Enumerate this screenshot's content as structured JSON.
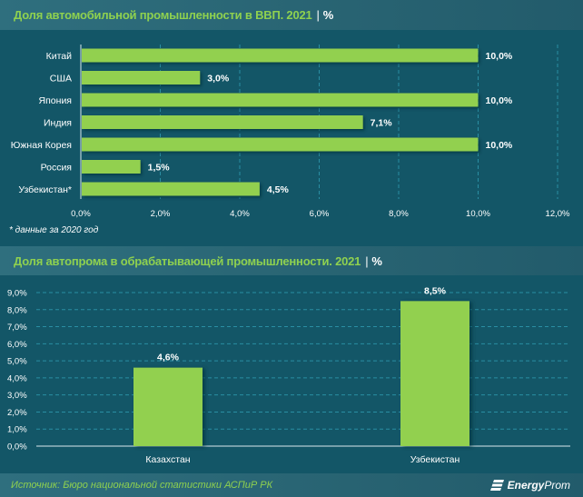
{
  "colors": {
    "background": "#135667",
    "bar": "#92d050",
    "title": "#8fd14f",
    "grid": "#2a8ea3",
    "axis": "#d9e8ec"
  },
  "header1": {
    "title": "Доля автомобильной промышленности в ВВП. 2021",
    "separator": "|",
    "unit": "%"
  },
  "header2": {
    "title": "Доля автопрома в обрабатывающей промышленности. 2021",
    "separator": "|",
    "unit": "%"
  },
  "note": "* данные за 2020 год",
  "footer": {
    "source": "Источник: Бюро национальной статистики АСПиР РК",
    "brand_bold": "Energy",
    "brand_light": "Prom"
  },
  "chart_data": [
    {
      "type": "bar",
      "orientation": "horizontal",
      "title": "Доля автомобильной промышленности в ВВП. 2021 | %",
      "categories": [
        "Китай",
        "США",
        "Япония",
        "Индия",
        "Южная Корея",
        "Россия",
        "Узбекистан*"
      ],
      "values": [
        10.0,
        3.0,
        10.0,
        7.1,
        10.0,
        1.5,
        4.5
      ],
      "data_labels": [
        "10,0%",
        "3,0%",
        "10,0%",
        "7,1%",
        "10,0%",
        "1,5%",
        "4,5%"
      ],
      "xlim": [
        0,
        12
      ],
      "xticks": [
        0,
        2,
        4,
        6,
        8,
        10,
        12
      ],
      "xtick_labels": [
        "0,0%",
        "2,0%",
        "4,0%",
        "6,0%",
        "8,0%",
        "10,0%",
        "12,0%"
      ],
      "xlabel": "",
      "ylabel": "",
      "grid": "vertical-dashed",
      "legend": "none"
    },
    {
      "type": "bar",
      "orientation": "vertical",
      "title": "Доля автопрома в обрабатывающей промышленности. 2021 | %",
      "categories": [
        "Казахстан",
        "Узбекистан"
      ],
      "values": [
        4.6,
        8.5
      ],
      "data_labels": [
        "4,6%",
        "8,5%"
      ],
      "ylim": [
        0,
        9
      ],
      "yticks": [
        0,
        1,
        2,
        3,
        4,
        5,
        6,
        7,
        8,
        9
      ],
      "ytick_labels": [
        "0,0%",
        "1,0%",
        "2,0%",
        "3,0%",
        "4,0%",
        "5,0%",
        "6,0%",
        "7,0%",
        "8,0%",
        "9,0%"
      ],
      "xlabel": "",
      "ylabel": "",
      "grid": "horizontal-dashed",
      "legend": "none"
    }
  ]
}
